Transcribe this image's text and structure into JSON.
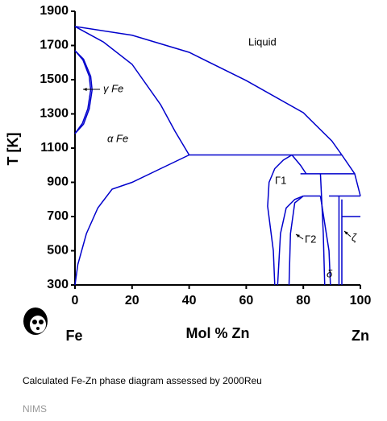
{
  "chart_data": {
    "type": "line",
    "xlabel": "Mol % Zn",
    "ylabel": "T [K]",
    "components": [
      "Fe",
      "Zn"
    ],
    "color": "#0000cc",
    "xlim": [
      0,
      100
    ],
    "ylim": [
      300,
      1900
    ],
    "xticks": [
      0,
      20,
      40,
      60,
      80,
      100
    ],
    "yticks": [
      300,
      500,
      700,
      900,
      1100,
      1300,
      1500,
      1700,
      1900
    ],
    "grid": false,
    "annotations": [
      "Liquid",
      "γ Fe",
      "α Fe",
      "Γ1",
      "Γ2",
      "δ",
      "ζ"
    ],
    "series": [
      {
        "x": [
          0,
          20,
          40,
          60,
          80,
          90,
          93.5
        ],
        "values": [
          1811,
          1760,
          1660,
          1495,
          1307,
          1142,
          1060
        ]
      },
      {
        "x": [
          0,
          10,
          20,
          30,
          35,
          40
        ],
        "values": [
          1811,
          1720,
          1590,
          1354,
          1200,
          1060
        ]
      },
      {
        "x": [
          40,
          93.5
        ],
        "values": [
          1060,
          1060
        ]
      },
      {
        "x": [
          40,
          30,
          20,
          13,
          8,
          4,
          1,
          0
        ],
        "values": [
          1060,
          980,
          900,
          860,
          750,
          600,
          420,
          300
        ]
      },
      {
        "x": [
          0,
          3,
          5.5,
          6,
          5,
          3,
          0
        ],
        "values": [
          1670,
          1620,
          1520,
          1440,
          1330,
          1240,
          1185
        ]
      },
      {
        "x": [
          0,
          2.8,
          5,
          5.5,
          4.5,
          2.6,
          0
        ],
        "values": [
          1670,
          1615,
          1520,
          1440,
          1330,
          1245,
          1185
        ]
      },
      {
        "x": [
          70,
          69.5,
          67.5,
          68,
          70,
          73,
          76
        ],
        "values": [
          300,
          500,
          760,
          900,
          980,
          1030,
          1060
        ]
      },
      {
        "x": [
          76,
          79,
          81
        ],
        "values": [
          1060,
          1000,
          950
        ]
      },
      {
        "x": [
          79,
          98
        ],
        "values": [
          950,
          950
        ]
      },
      {
        "x": [
          71,
          72,
          74,
          77,
          80
        ],
        "values": [
          300,
          600,
          750,
          800,
          820
        ]
      },
      {
        "x": [
          75,
          75.5,
          77,
          80
        ],
        "values": [
          300,
          600,
          780,
          820
        ]
      },
      {
        "x": [
          80,
          86
        ],
        "values": [
          820,
          820
        ]
      },
      {
        "x": [
          86,
          87,
          87.5
        ],
        "values": [
          950,
          600,
          300
        ]
      },
      {
        "x": [
          86,
          89,
          89.5
        ],
        "values": [
          820,
          500,
          300
        ]
      },
      {
        "x": [
          92.5,
          92.5
        ],
        "values": [
          300,
          820
        ]
      },
      {
        "x": [
          93.5,
          93.5
        ],
        "values": [
          300,
          800
        ]
      },
      {
        "x": [
          89,
          100
        ],
        "values": [
          820,
          820
        ]
      },
      {
        "x": [
          93.5,
          100
        ],
        "values": [
          700,
          700
        ]
      },
      {
        "x": [
          93.5,
          98,
          100
        ],
        "values": [
          1060,
          950,
          820
        ]
      }
    ],
    "caption": "Calculated Fe-Zn phase diagram assessed by 2000Reu",
    "source": "NIMS"
  }
}
